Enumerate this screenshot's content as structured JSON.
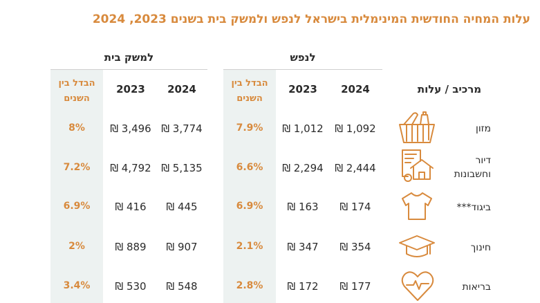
{
  "title": "עלות המחיה החודשית המינימלית בישראל לנפש ולמשק בית בשנים 2023, 2024",
  "groups": {
    "per_person": "לנפש",
    "household": "למשק בית"
  },
  "headers": {
    "component": "מרכיב / עלות",
    "y2024": "2024",
    "y2023": "2023",
    "diff_line1": "הבדל בין",
    "diff_line2": "השנים"
  },
  "rows": [
    {
      "label": "מזון",
      "label2": "",
      "icon": "food-basket-icon",
      "p2024": "1,092 ₪",
      "p2023": "1,012 ₪",
      "pdiff": "7.9%",
      "h2024": "3,774 ₪",
      "h2023": "3,496 ₪",
      "hdiff": "8%"
    },
    {
      "label": "דיור",
      "label2": "וחשבונות",
      "icon": "house-bills-icon",
      "p2024": "2,444 ₪",
      "p2023": "2,294 ₪",
      "pdiff": "6.6%",
      "h2024": "5,135 ₪",
      "h2023": "4,792 ₪",
      "hdiff": "7.2%"
    },
    {
      "label": "ביגוד***",
      "label2": "",
      "icon": "tshirt-icon",
      "p2024": "174 ₪",
      "p2023": "163 ₪",
      "pdiff": "6.9%",
      "h2024": "445 ₪",
      "h2023": "416 ₪",
      "hdiff": "6.9%"
    },
    {
      "label": "חינוך",
      "label2": "",
      "icon": "graduation-cap-icon",
      "p2024": "354 ₪",
      "p2023": "347 ₪",
      "pdiff": "2.1%",
      "h2024": "907 ₪",
      "h2023": "889 ₪",
      "hdiff": "2%"
    },
    {
      "label": "בריאות",
      "label2": "",
      "icon": "heart-pulse-icon",
      "p2024": "177 ₪",
      "p2023": "172 ₪",
      "pdiff": "2.8%",
      "h2024": "548 ₪",
      "h2023": "530 ₪",
      "hdiff": "3.4%"
    }
  ],
  "colors": {
    "accent": "#d88a3d",
    "shade": "#edf2f1",
    "text": "#2b2b2b"
  }
}
